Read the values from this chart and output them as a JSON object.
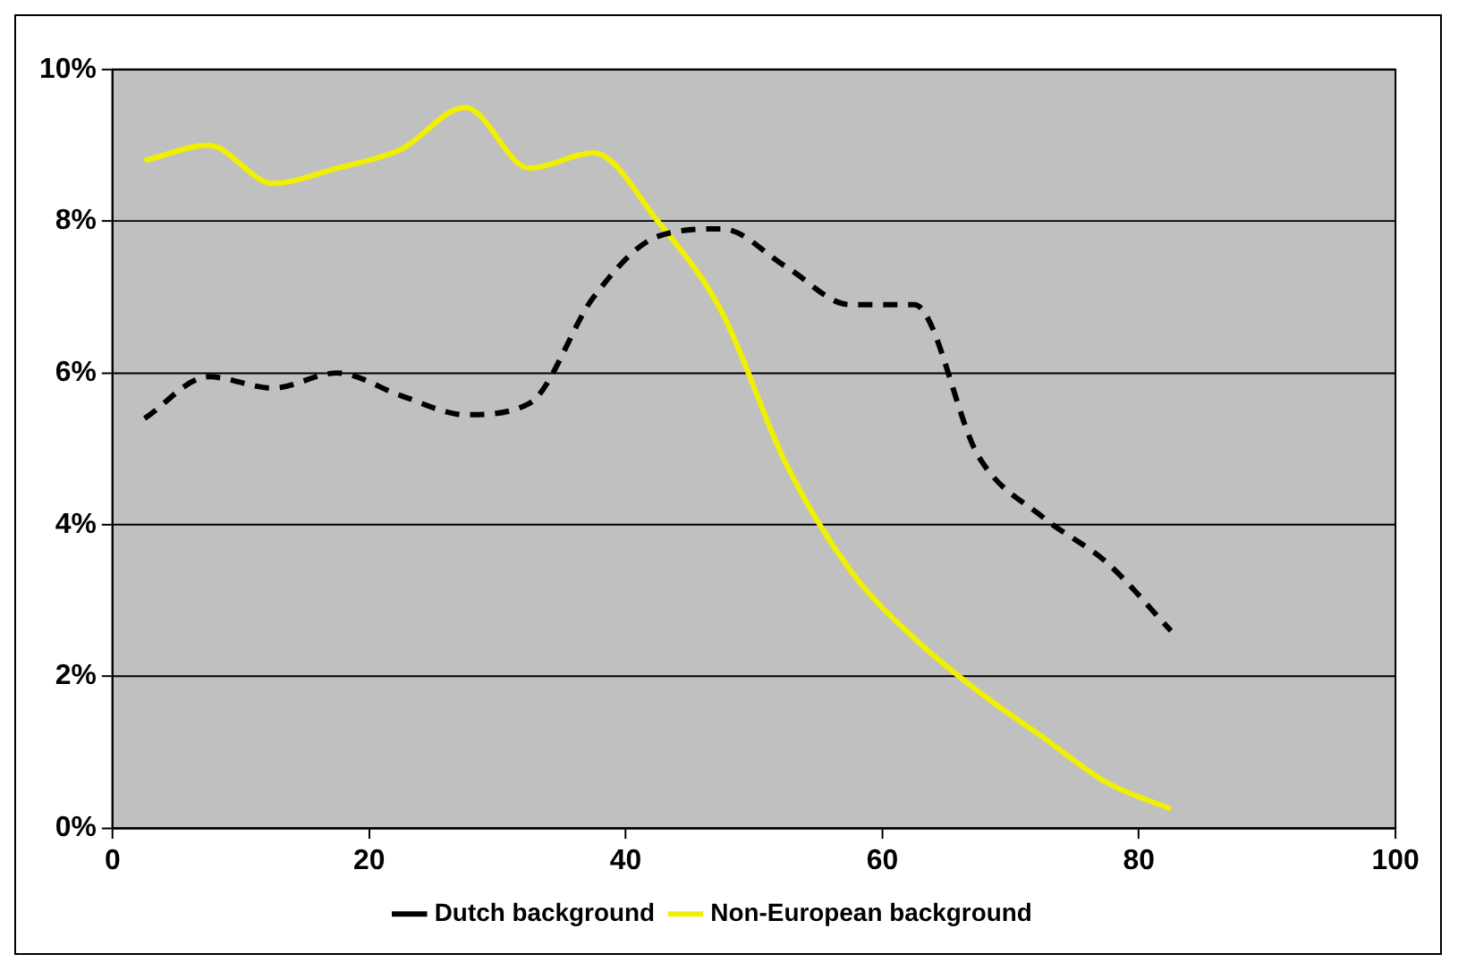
{
  "chart_data": {
    "type": "line",
    "xlim": [
      0,
      100
    ],
    "xticks": [
      0,
      20,
      40,
      60,
      80,
      100
    ],
    "ylim": [
      0,
      10
    ],
    "yticks": [
      {
        "value": 0,
        "label": "0%"
      },
      {
        "value": 2,
        "label": "2%"
      },
      {
        "value": 4,
        "label": "4%"
      },
      {
        "value": 6,
        "label": "6%"
      },
      {
        "value": 8,
        "label": "8%"
      },
      {
        "value": 10,
        "label": "10%"
      }
    ],
    "grid": "y",
    "legend": "bottom",
    "marker": "none",
    "x": [
      2.5,
      7.5,
      12.5,
      17.5,
      22.5,
      27.5,
      32.5,
      37.5,
      42.5,
      47.5,
      52.5,
      57.5,
      62.5,
      67.5,
      72.5,
      77.5,
      82.5
    ],
    "series": [
      {
        "name": "Dutch background",
        "color": "#000000",
        "line_style": "dashed",
        "values": [
          5.4,
          5.95,
          5.8,
          6.0,
          5.7,
          5.45,
          5.6,
          7.0,
          7.8,
          7.9,
          7.4,
          6.9,
          6.9,
          4.9,
          4.1,
          3.5,
          2.6
        ]
      },
      {
        "name": "Non-European background",
        "color": "#f0f000",
        "line_style": "solid",
        "values": [
          8.8,
          9.0,
          8.5,
          8.7,
          8.95,
          9.5,
          8.7,
          8.9,
          8.0,
          6.8,
          4.8,
          3.4,
          2.5,
          1.8,
          1.2,
          0.6,
          0.25
        ]
      }
    ]
  }
}
